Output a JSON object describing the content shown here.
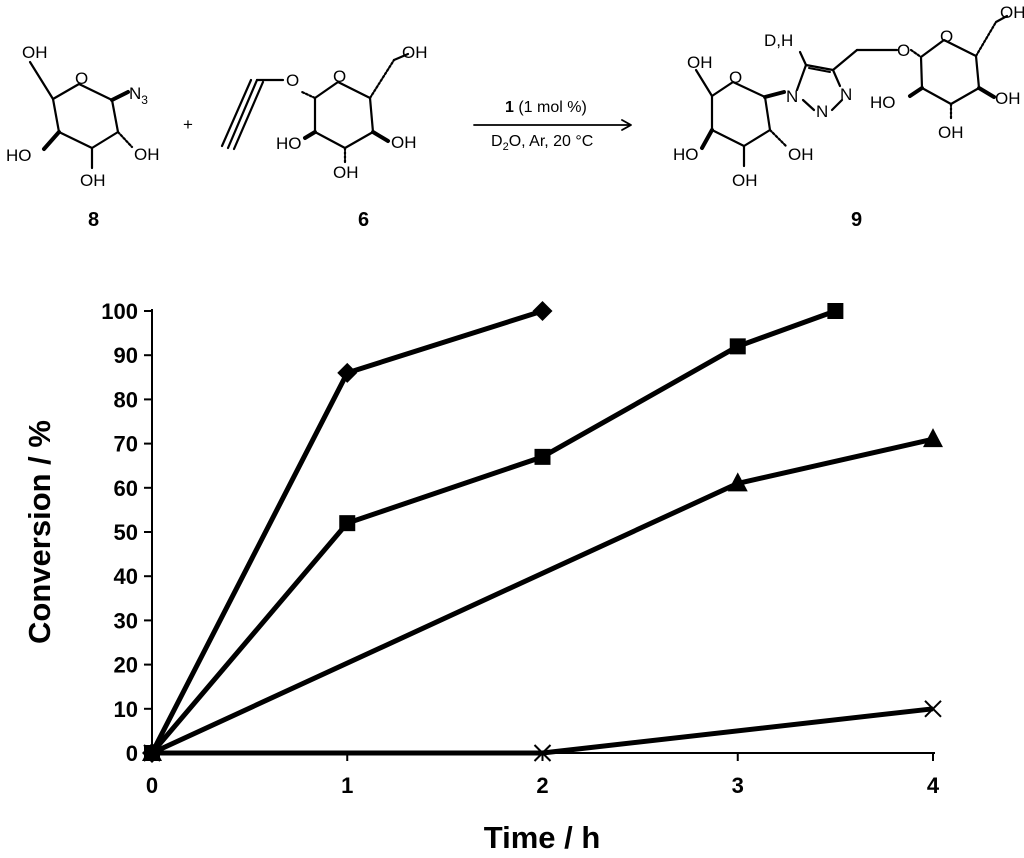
{
  "scheme": {
    "compounds": [
      {
        "id": "compound-8",
        "label": "8"
      },
      {
        "id": "compound-6",
        "label": "6"
      },
      {
        "id": "compound-9",
        "label": "9"
      }
    ],
    "plus": "+",
    "arrow_above_num": "1",
    "arrow_above_rest": " (1 mol %)",
    "arrow_below_d": "D",
    "arrow_below_sub": "2",
    "arrow_below_rest": "O, Ar, 20 °C",
    "atoms": {
      "oh": "OH",
      "ho": "HO",
      "o": "O",
      "n": "N",
      "n3_n": "N",
      "n3_sub": "3",
      "dh": "D,H"
    }
  },
  "chart_data": {
    "type": "line",
    "xlabel": "Time / h",
    "ylabel": "Conversion / %",
    "xlim": [
      0,
      4
    ],
    "ylim": [
      0,
      100
    ],
    "x_ticks": [
      "0",
      "1",
      "2",
      "3",
      "4"
    ],
    "y_ticks": [
      "0",
      "10",
      "20",
      "30",
      "40",
      "50",
      "60",
      "70",
      "80",
      "90",
      "100"
    ],
    "grid": false,
    "legend": "none",
    "series": [
      {
        "marker": "diamond",
        "x": [
          0,
          1,
          2
        ],
        "y": [
          0,
          86,
          100
        ]
      },
      {
        "marker": "square",
        "x": [
          0,
          1,
          2,
          3,
          3.5
        ],
        "y": [
          0,
          52,
          67,
          92,
          100
        ]
      },
      {
        "marker": "triangle",
        "x": [
          0,
          3,
          4
        ],
        "y": [
          0,
          61,
          71
        ]
      },
      {
        "marker": "cross",
        "x": [
          0,
          2,
          4
        ],
        "y": [
          0,
          0,
          10
        ]
      }
    ],
    "line_color": "#000000"
  }
}
